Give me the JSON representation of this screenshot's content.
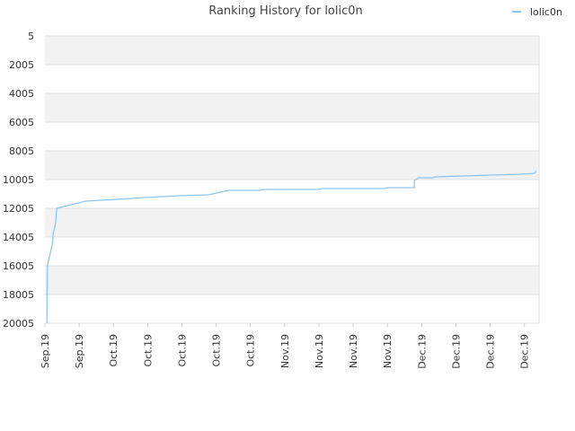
{
  "chart_data": {
    "type": "line",
    "title": "Ranking History for lolic0n",
    "x": [
      0.4,
      0.5,
      1.5,
      1.7,
      2.2,
      2.4,
      8.3,
      14.7,
      20.2,
      27.5,
      33.4,
      37.6,
      44,
      44.4,
      56,
      56.6,
      69.4,
      69.8,
      75.5,
      75.5,
      76.4,
      79.3,
      79.7,
      85.2,
      91.1,
      97.3,
      100.1,
      100.4
    ],
    "series": [
      {
        "name": "lolic0n",
        "color": "#90c4f0",
        "values": [
          20005,
          16005,
          14505,
          13755,
          13005,
          12005,
          11505,
          11380,
          11255,
          11130,
          11068,
          10755,
          10755,
          10692,
          10692,
          10630,
          10630,
          10567,
          10567,
          10067,
          9880,
          9880,
          9818,
          9755,
          9693,
          9630,
          9568,
          9380
        ]
      }
    ],
    "xlim": [
      0,
      101
    ],
    "xticks": [
      {
        "value": 0,
        "label": "Sep.19"
      },
      {
        "value": 7,
        "label": "Sep.19"
      },
      {
        "value": 14,
        "label": "Oct.19"
      },
      {
        "value": 21,
        "label": "Oct.19"
      },
      {
        "value": 28,
        "label": "Oct.19"
      },
      {
        "value": 35,
        "label": "Oct.19"
      },
      {
        "value": 42,
        "label": "Oct.19"
      },
      {
        "value": 49,
        "label": "Nov.19"
      },
      {
        "value": 56,
        "label": "Nov.19"
      },
      {
        "value": 63,
        "label": "Nov.19"
      },
      {
        "value": 70,
        "label": "Nov.19"
      },
      {
        "value": 77,
        "label": "Dec.19"
      },
      {
        "value": 84,
        "label": "Dec.19"
      },
      {
        "value": 91,
        "label": "Dec.19"
      },
      {
        "value": 98,
        "label": "Dec.19"
      }
    ],
    "ylim": [
      5,
      20005
    ],
    "y_inverted": true,
    "yticks": [
      5,
      2005,
      4005,
      6005,
      8005,
      10005,
      12005,
      14005,
      16005,
      18005,
      20005
    ],
    "grid": true,
    "legend": "top-right"
  }
}
